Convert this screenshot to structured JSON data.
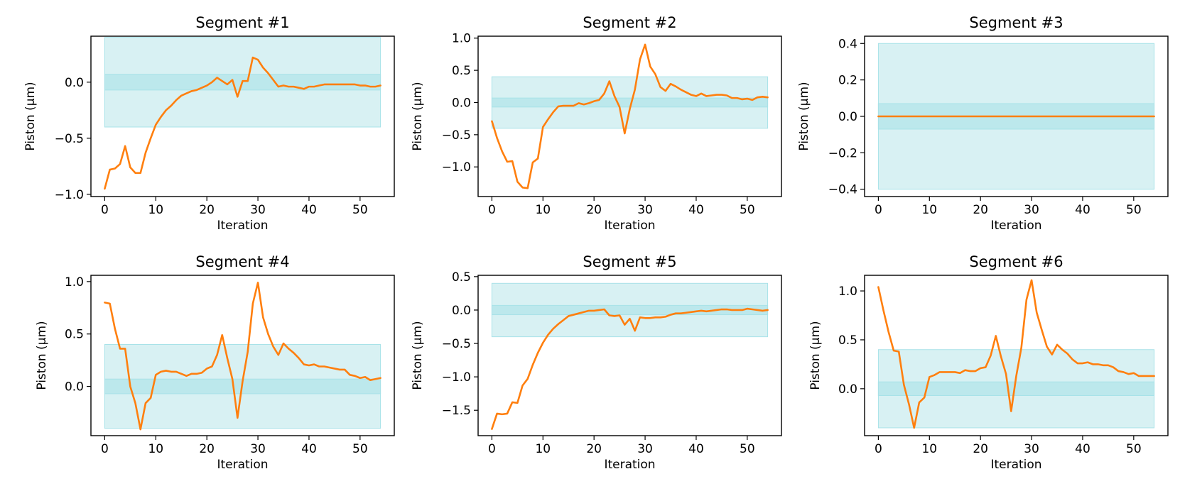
{
  "figure": {
    "colors": {
      "line": "#ff7f0e",
      "band_outer": "#d8f1f3",
      "band_inner": "#bce8ec",
      "band_edge": "#a8e2e8",
      "axes": "#000000"
    }
  },
  "chart_data": [
    {
      "type": "line",
      "title": "Segment #1",
      "xlabel": "Iteration",
      "ylabel": "Piston (μm)",
      "xlim": [
        -2.7,
        56.7
      ],
      "ylim": [
        -1.02,
        0.41
      ],
      "xticks": [
        0,
        10,
        20,
        30,
        40,
        50
      ],
      "xtick_labels": [
        "0",
        "10",
        "20",
        "30",
        "40",
        "50"
      ],
      "yticks": [
        -1.0,
        -0.5,
        0.0
      ],
      "ytick_labels": [
        "−1.0",
        "−0.5",
        "0.0"
      ],
      "bands": {
        "outer": [
          -0.4,
          0.4
        ],
        "inner": [
          -0.07,
          0.07
        ],
        "x_range": [
          0,
          54
        ]
      },
      "series": [
        {
          "x": [
            0,
            1,
            2,
            3,
            4,
            5,
            6,
            7,
            8,
            9,
            10,
            11,
            12,
            13,
            14,
            15,
            16,
            17,
            18,
            19,
            20,
            21,
            22,
            23,
            24,
            25,
            26,
            27,
            28,
            29,
            30,
            31,
            32,
            33,
            34,
            35,
            36,
            37,
            38,
            39,
            40,
            41,
            42,
            43,
            44,
            45,
            46,
            47,
            48,
            49,
            50,
            51,
            52,
            53,
            54
          ],
          "y": [
            -0.95,
            -0.78,
            -0.77,
            -0.73,
            -0.57,
            -0.76,
            -0.81,
            -0.81,
            -0.63,
            -0.5,
            -0.38,
            -0.31,
            -0.25,
            -0.21,
            -0.16,
            -0.12,
            -0.1,
            -0.08,
            -0.07,
            -0.05,
            -0.03,
            0.0,
            0.04,
            0.01,
            -0.02,
            0.02,
            -0.13,
            0.01,
            0.01,
            0.22,
            0.2,
            0.13,
            0.08,
            0.02,
            -0.04,
            -0.03,
            -0.04,
            -0.04,
            -0.05,
            -0.06,
            -0.04,
            -0.04,
            -0.03,
            -0.02,
            -0.02,
            -0.02,
            -0.02,
            -0.02,
            -0.02,
            -0.02,
            -0.03,
            -0.03,
            -0.04,
            -0.04,
            -0.03
          ]
        }
      ]
    },
    {
      "type": "line",
      "title": "Segment #2",
      "xlabel": "Iteration",
      "ylabel": "Piston (μm)",
      "xlim": [
        -2.7,
        56.7
      ],
      "ylim": [
        -1.46,
        1.03
      ],
      "xticks": [
        0,
        10,
        20,
        30,
        40,
        50
      ],
      "xtick_labels": [
        "0",
        "10",
        "20",
        "30",
        "40",
        "50"
      ],
      "yticks": [
        -1.0,
        -0.5,
        0.0,
        0.5,
        1.0
      ],
      "ytick_labels": [
        "−1.0",
        "−0.5",
        "0.0",
        "0.5",
        "1.0"
      ],
      "bands": {
        "outer": [
          -0.4,
          0.4
        ],
        "inner": [
          -0.07,
          0.07
        ],
        "x_range": [
          0,
          54
        ]
      },
      "series": [
        {
          "x": [
            0,
            1,
            2,
            3,
            4,
            5,
            6,
            7,
            8,
            9,
            10,
            11,
            12,
            13,
            14,
            15,
            16,
            17,
            18,
            19,
            20,
            21,
            22,
            23,
            24,
            25,
            26,
            27,
            28,
            29,
            30,
            31,
            32,
            33,
            34,
            35,
            36,
            37,
            38,
            39,
            40,
            41,
            42,
            43,
            44,
            45,
            46,
            47,
            48,
            49,
            50,
            51,
            52,
            53,
            54
          ],
          "y": [
            -0.29,
            -0.55,
            -0.76,
            -0.92,
            -0.91,
            -1.23,
            -1.32,
            -1.33,
            -0.93,
            -0.87,
            -0.38,
            -0.26,
            -0.15,
            -0.06,
            -0.05,
            -0.05,
            -0.05,
            -0.01,
            -0.03,
            -0.01,
            0.02,
            0.04,
            0.14,
            0.33,
            0.1,
            -0.07,
            -0.48,
            -0.1,
            0.2,
            0.67,
            0.9,
            0.56,
            0.44,
            0.24,
            0.18,
            0.29,
            0.25,
            0.2,
            0.16,
            0.12,
            0.1,
            0.14,
            0.1,
            0.11,
            0.12,
            0.12,
            0.11,
            0.07,
            0.07,
            0.05,
            0.06,
            0.04,
            0.08,
            0.09,
            0.08
          ]
        }
      ]
    },
    {
      "type": "line",
      "title": "Segment #3",
      "xlabel": "Iteration",
      "ylabel": "Piston (μm)",
      "xlim": [
        -2.7,
        56.7
      ],
      "ylim": [
        -0.44,
        0.44
      ],
      "xticks": [
        0,
        10,
        20,
        30,
        40,
        50
      ],
      "xtick_labels": [
        "0",
        "10",
        "20",
        "30",
        "40",
        "50"
      ],
      "yticks": [
        -0.4,
        -0.2,
        0.0,
        0.2,
        0.4
      ],
      "ytick_labels": [
        "−0.4",
        "−0.2",
        "0.0",
        "0.2",
        "0.4"
      ],
      "bands": {
        "outer": [
          -0.4,
          0.4
        ],
        "inner": [
          -0.07,
          0.07
        ],
        "x_range": [
          0,
          54
        ]
      },
      "series": [
        {
          "x": [
            0,
            54
          ],
          "y": [
            0.0,
            0.0
          ]
        }
      ]
    },
    {
      "type": "line",
      "title": "Segment #4",
      "xlabel": "Iteration",
      "ylabel": "Piston (μm)",
      "xlim": [
        -2.7,
        56.7
      ],
      "ylim": [
        -0.47,
        1.06
      ],
      "xticks": [
        0,
        10,
        20,
        30,
        40,
        50
      ],
      "xtick_labels": [
        "0",
        "10",
        "20",
        "30",
        "40",
        "50"
      ],
      "yticks": [
        0.0,
        0.5,
        1.0
      ],
      "ytick_labels": [
        "0.0",
        "0.5",
        "1.0"
      ],
      "bands": {
        "outer": [
          -0.4,
          0.4
        ],
        "inner": [
          -0.07,
          0.07
        ],
        "x_range": [
          0,
          54
        ]
      },
      "series": [
        {
          "x": [
            0,
            1,
            2,
            3,
            4,
            5,
            6,
            7,
            8,
            9,
            10,
            11,
            12,
            13,
            14,
            15,
            16,
            17,
            18,
            19,
            20,
            21,
            22,
            23,
            24,
            25,
            26,
            27,
            28,
            29,
            30,
            31,
            32,
            33,
            34,
            35,
            36,
            37,
            38,
            39,
            40,
            41,
            42,
            43,
            44,
            45,
            46,
            47,
            48,
            49,
            50,
            51,
            52,
            53,
            54
          ],
          "y": [
            0.8,
            0.79,
            0.55,
            0.36,
            0.36,
            0.0,
            -0.16,
            -0.41,
            -0.16,
            -0.11,
            0.11,
            0.14,
            0.15,
            0.14,
            0.14,
            0.12,
            0.1,
            0.12,
            0.12,
            0.13,
            0.17,
            0.19,
            0.3,
            0.49,
            0.27,
            0.07,
            -0.3,
            0.05,
            0.33,
            0.79,
            0.99,
            0.66,
            0.5,
            0.38,
            0.3,
            0.41,
            0.36,
            0.32,
            0.27,
            0.21,
            0.2,
            0.21,
            0.19,
            0.19,
            0.18,
            0.17,
            0.16,
            0.16,
            0.11,
            0.1,
            0.08,
            0.09,
            0.06,
            0.07,
            0.08
          ]
        }
      ]
    },
    {
      "type": "line",
      "title": "Segment #5",
      "xlabel": "Iteration",
      "ylabel": "Piston (μm)",
      "xlim": [
        -2.7,
        56.7
      ],
      "ylim": [
        -1.88,
        0.52
      ],
      "xticks": [
        0,
        10,
        20,
        30,
        40,
        50
      ],
      "xtick_labels": [
        "0",
        "10",
        "20",
        "30",
        "40",
        "50"
      ],
      "yticks": [
        -1.5,
        -1.0,
        -0.5,
        0.0,
        0.5
      ],
      "ytick_labels": [
        "−1.5",
        "−1.0",
        "−0.5",
        "0.0",
        "0.5"
      ],
      "bands": {
        "outer": [
          -0.4,
          0.4
        ],
        "inner": [
          -0.07,
          0.07
        ],
        "x_range": [
          0,
          54
        ]
      },
      "series": [
        {
          "x": [
            0,
            1,
            2,
            3,
            4,
            5,
            6,
            7,
            8,
            9,
            10,
            11,
            12,
            13,
            14,
            15,
            16,
            17,
            18,
            19,
            20,
            21,
            22,
            23,
            24,
            25,
            26,
            27,
            28,
            29,
            30,
            31,
            32,
            33,
            34,
            35,
            36,
            37,
            38,
            39,
            40,
            41,
            42,
            43,
            44,
            45,
            46,
            47,
            48,
            49,
            50,
            51,
            52,
            53,
            54
          ],
          "y": [
            -1.78,
            -1.55,
            -1.56,
            -1.55,
            -1.38,
            -1.39,
            -1.13,
            -1.03,
            -0.82,
            -0.64,
            -0.49,
            -0.37,
            -0.28,
            -0.21,
            -0.15,
            -0.09,
            -0.07,
            -0.05,
            -0.03,
            -0.01,
            -0.01,
            0.0,
            0.01,
            -0.08,
            -0.09,
            -0.08,
            -0.22,
            -0.13,
            -0.31,
            -0.11,
            -0.12,
            -0.12,
            -0.11,
            -0.11,
            -0.1,
            -0.07,
            -0.05,
            -0.05,
            -0.04,
            -0.03,
            -0.02,
            -0.01,
            -0.02,
            -0.01,
            0.0,
            0.01,
            0.01,
            0.0,
            0.0,
            0.0,
            0.02,
            0.01,
            0.0,
            -0.01,
            0.0
          ]
        }
      ]
    },
    {
      "type": "line",
      "title": "Segment #6",
      "xlabel": "Iteration",
      "ylabel": "Piston (μm)",
      "xlim": [
        -2.7,
        56.7
      ],
      "ylim": [
        -0.48,
        1.16
      ],
      "xticks": [
        0,
        10,
        20,
        30,
        40,
        50
      ],
      "xtick_labels": [
        "0",
        "10",
        "20",
        "30",
        "40",
        "50"
      ],
      "yticks": [
        0.0,
        0.5,
        1.0
      ],
      "ytick_labels": [
        "0.0",
        "0.5",
        "1.0"
      ],
      "bands": {
        "outer": [
          -0.4,
          0.4
        ],
        "inner": [
          -0.07,
          0.07
        ],
        "x_range": [
          0,
          54
        ]
      },
      "series": [
        {
          "x": [
            0,
            1,
            2,
            3,
            4,
            5,
            6,
            7,
            8,
            9,
            10,
            11,
            12,
            13,
            14,
            15,
            16,
            17,
            18,
            19,
            20,
            21,
            22,
            23,
            24,
            25,
            26,
            27,
            28,
            29,
            30,
            31,
            32,
            33,
            34,
            35,
            36,
            37,
            38,
            39,
            40,
            41,
            42,
            43,
            44,
            45,
            46,
            47,
            48,
            49,
            50,
            51,
            52,
            53,
            54
          ],
          "y": [
            1.04,
            0.8,
            0.58,
            0.39,
            0.38,
            0.04,
            -0.16,
            -0.4,
            -0.14,
            -0.09,
            0.12,
            0.14,
            0.17,
            0.17,
            0.17,
            0.17,
            0.16,
            0.19,
            0.18,
            0.18,
            0.21,
            0.22,
            0.34,
            0.54,
            0.33,
            0.15,
            -0.23,
            0.13,
            0.42,
            0.91,
            1.11,
            0.78,
            0.6,
            0.43,
            0.35,
            0.45,
            0.4,
            0.36,
            0.3,
            0.26,
            0.26,
            0.27,
            0.25,
            0.25,
            0.24,
            0.24,
            0.22,
            0.18,
            0.17,
            0.15,
            0.16,
            0.13,
            0.13,
            0.13,
            0.13
          ]
        }
      ]
    }
  ]
}
